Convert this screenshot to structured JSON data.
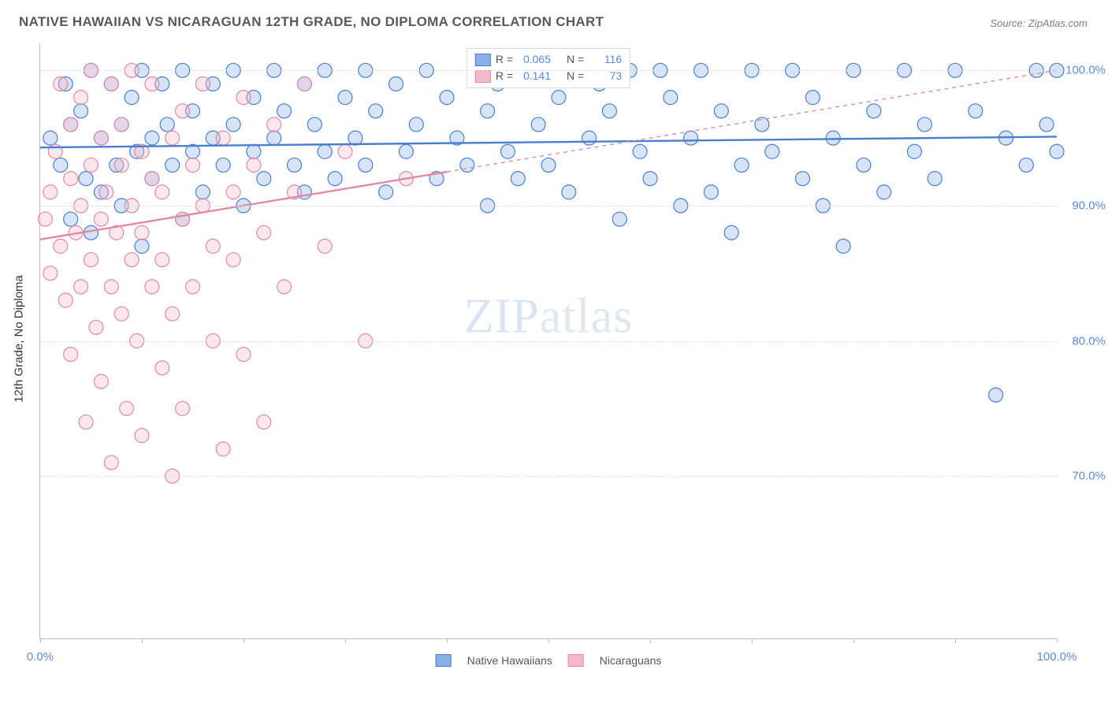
{
  "title": "NATIVE HAWAIIAN VS NICARAGUAN 12TH GRADE, NO DIPLOMA CORRELATION CHART",
  "source": "Source: ZipAtlas.com",
  "ylabel": "12th Grade, No Diploma",
  "watermark": {
    "a": "ZIP",
    "b": "atlas"
  },
  "chart": {
    "type": "scatter",
    "xlim": [
      0,
      100
    ],
    "ylim": [
      58,
      102
    ],
    "xticks": [
      0,
      10,
      20,
      30,
      40,
      50,
      60,
      70,
      80,
      90,
      100
    ],
    "xtick_labels_show": [
      0,
      100
    ],
    "xtick_fmt": [
      "0.0%",
      "100.0%"
    ],
    "yticks": [
      70,
      80,
      90,
      100
    ],
    "ytick_fmt": [
      "70.0%",
      "80.0%",
      "90.0%",
      "100.0%"
    ],
    "background_color": "#ffffff",
    "grid_color": "#dcdfe3",
    "axis_color": "#b9bdc2",
    "tick_label_color": "#5b8bd4",
    "marker_radius": 9,
    "marker_stroke_width": 1.2,
    "marker_fill_opacity": 0.35
  },
  "series": [
    {
      "name": "Native Hawaiians",
      "color_stroke": "#4a7fd0",
      "color_fill": "#8bb0e6",
      "R": "0.065",
      "N": "116",
      "trend": {
        "x1": 0,
        "y1": 94.3,
        "x2": 100,
        "y2": 95.1,
        "dash_from_x": null
      },
      "points": [
        [
          1,
          95
        ],
        [
          2,
          93
        ],
        [
          2.5,
          99
        ],
        [
          3,
          96
        ],
        [
          3,
          89
        ],
        [
          4,
          97
        ],
        [
          4.5,
          92
        ],
        [
          5,
          100
        ],
        [
          5,
          88
        ],
        [
          6,
          95
        ],
        [
          6,
          91
        ],
        [
          7,
          99
        ],
        [
          7.5,
          93
        ],
        [
          8,
          96
        ],
        [
          8,
          90
        ],
        [
          9,
          98
        ],
        [
          9.5,
          94
        ],
        [
          10,
          100
        ],
        [
          10,
          87
        ],
        [
          11,
          95
        ],
        [
          11,
          92
        ],
        [
          12,
          99
        ],
        [
          12.5,
          96
        ],
        [
          13,
          93
        ],
        [
          14,
          100
        ],
        [
          14,
          89
        ],
        [
          15,
          97
        ],
        [
          15,
          94
        ],
        [
          16,
          91
        ],
        [
          17,
          99
        ],
        [
          17,
          95
        ],
        [
          18,
          93
        ],
        [
          19,
          100
        ],
        [
          19,
          96
        ],
        [
          20,
          90
        ],
        [
          21,
          98
        ],
        [
          21,
          94
        ],
        [
          22,
          92
        ],
        [
          23,
          100
        ],
        [
          23,
          95
        ],
        [
          24,
          97
        ],
        [
          25,
          93
        ],
        [
          26,
          99
        ],
        [
          26,
          91
        ],
        [
          27,
          96
        ],
        [
          28,
          100
        ],
        [
          28,
          94
        ],
        [
          29,
          92
        ],
        [
          30,
          98
        ],
        [
          31,
          95
        ],
        [
          32,
          100
        ],
        [
          32,
          93
        ],
        [
          33,
          97
        ],
        [
          34,
          91
        ],
        [
          35,
          99
        ],
        [
          36,
          94
        ],
        [
          37,
          96
        ],
        [
          38,
          100
        ],
        [
          39,
          92
        ],
        [
          40,
          98
        ],
        [
          41,
          95
        ],
        [
          42,
          93
        ],
        [
          43,
          100
        ],
        [
          44,
          97
        ],
        [
          44,
          90
        ],
        [
          45,
          99
        ],
        [
          46,
          94
        ],
        [
          47,
          92
        ],
        [
          48,
          100
        ],
        [
          49,
          96
        ],
        [
          50,
          93
        ],
        [
          51,
          98
        ],
        [
          52,
          91
        ],
        [
          53,
          100
        ],
        [
          54,
          95
        ],
        [
          56,
          97
        ],
        [
          57,
          89
        ],
        [
          58,
          100
        ],
        [
          59,
          94
        ],
        [
          60,
          92
        ],
        [
          61,
          100
        ],
        [
          62,
          98
        ],
        [
          63,
          90
        ],
        [
          64,
          95
        ],
        [
          65,
          100
        ],
        [
          66,
          91
        ],
        [
          67,
          97
        ],
        [
          68,
          88
        ],
        [
          69,
          93
        ],
        [
          70,
          100
        ],
        [
          71,
          96
        ],
        [
          72,
          94
        ],
        [
          74,
          100
        ],
        [
          75,
          92
        ],
        [
          76,
          98
        ],
        [
          77,
          90
        ],
        [
          78,
          95
        ],
        [
          79,
          87
        ],
        [
          80,
          100
        ],
        [
          81,
          93
        ],
        [
          82,
          97
        ],
        [
          83,
          91
        ],
        [
          85,
          100
        ],
        [
          86,
          94
        ],
        [
          87,
          96
        ],
        [
          88,
          92
        ],
        [
          90,
          100
        ],
        [
          92,
          97
        ],
        [
          94,
          76
        ],
        [
          95,
          95
        ],
        [
          97,
          93
        ],
        [
          98,
          100
        ],
        [
          99,
          96
        ],
        [
          100,
          94
        ],
        [
          100,
          100
        ],
        [
          55,
          99
        ]
      ]
    },
    {
      "name": "Nicaraguans",
      "color_stroke": "#e08aa3",
      "color_fill": "#f4b9ca",
      "R": "0.141",
      "N": "73",
      "trend": {
        "x1": 0,
        "y1": 87.5,
        "x2": 100,
        "y2": 100,
        "dash_from_x": 40
      },
      "points": [
        [
          0.5,
          89
        ],
        [
          1,
          91
        ],
        [
          1,
          85
        ],
        [
          1.5,
          94
        ],
        [
          2,
          87
        ],
        [
          2,
          99
        ],
        [
          2.5,
          83
        ],
        [
          3,
          92
        ],
        [
          3,
          96
        ],
        [
          3,
          79
        ],
        [
          3.5,
          88
        ],
        [
          4,
          90
        ],
        [
          4,
          84
        ],
        [
          4,
          98
        ],
        [
          4.5,
          74
        ],
        [
          5,
          93
        ],
        [
          5,
          86
        ],
        [
          5,
          100
        ],
        [
          5.5,
          81
        ],
        [
          6,
          89
        ],
        [
          6,
          95
        ],
        [
          6,
          77
        ],
        [
          6.5,
          91
        ],
        [
          7,
          84
        ],
        [
          7,
          99
        ],
        [
          7,
          71
        ],
        [
          7.5,
          88
        ],
        [
          8,
          93
        ],
        [
          8,
          82
        ],
        [
          8,
          96
        ],
        [
          8.5,
          75
        ],
        [
          9,
          90
        ],
        [
          9,
          86
        ],
        [
          9,
          100
        ],
        [
          9.5,
          80
        ],
        [
          10,
          94
        ],
        [
          10,
          73
        ],
        [
          10,
          88
        ],
        [
          11,
          92
        ],
        [
          11,
          84
        ],
        [
          11,
          99
        ],
        [
          12,
          78
        ],
        [
          12,
          91
        ],
        [
          12,
          86
        ],
        [
          13,
          95
        ],
        [
          13,
          82
        ],
        [
          13,
          70
        ],
        [
          14,
          89
        ],
        [
          14,
          97
        ],
        [
          14,
          75
        ],
        [
          15,
          93
        ],
        [
          15,
          84
        ],
        [
          16,
          90
        ],
        [
          16,
          99
        ],
        [
          17,
          87
        ],
        [
          17,
          80
        ],
        [
          18,
          95
        ],
        [
          18,
          72
        ],
        [
          19,
          91
        ],
        [
          19,
          86
        ],
        [
          20,
          98
        ],
        [
          20,
          79
        ],
        [
          21,
          93
        ],
        [
          22,
          88
        ],
        [
          22,
          74
        ],
        [
          23,
          96
        ],
        [
          24,
          84
        ],
        [
          25,
          91
        ],
        [
          26,
          99
        ],
        [
          28,
          87
        ],
        [
          30,
          94
        ],
        [
          32,
          80
        ],
        [
          36,
          92
        ]
      ]
    }
  ],
  "legend_top": {
    "rows": [
      {
        "swatch": 0,
        "r_lbl": "R =",
        "n_lbl": "N ="
      },
      {
        "swatch": 1,
        "r_lbl": "R =",
        "n_lbl": "N ="
      }
    ]
  },
  "legend_bottom": [
    {
      "swatch": 0
    },
    {
      "swatch": 1
    }
  ]
}
